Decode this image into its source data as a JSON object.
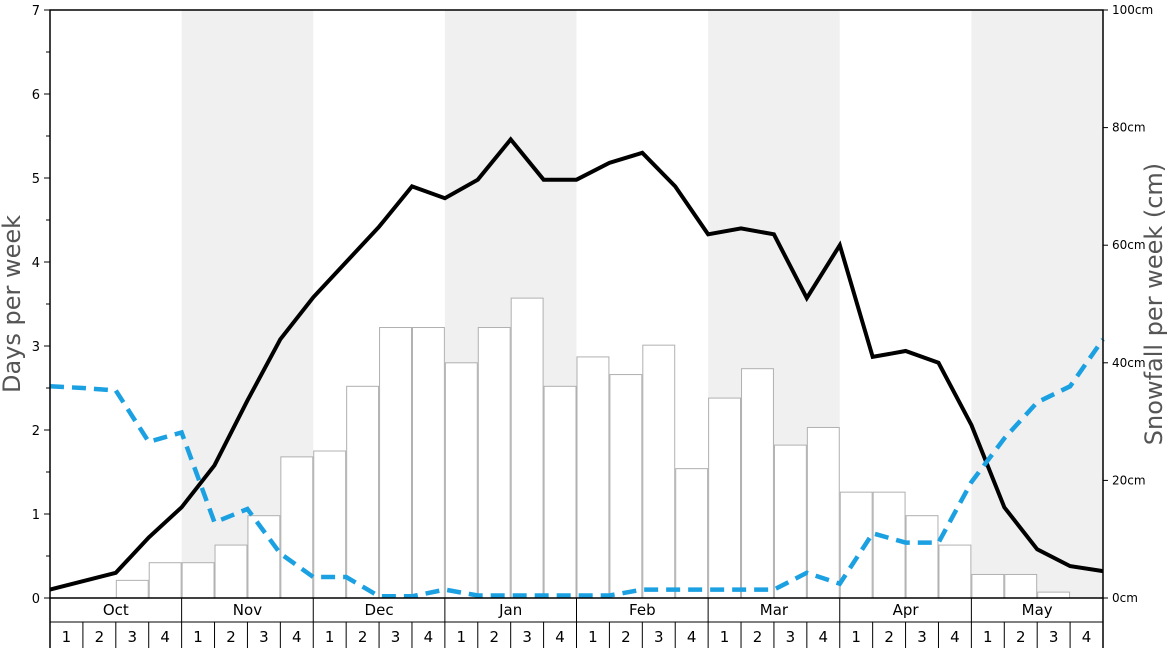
{
  "chart_data": {
    "type": "bar",
    "months": [
      "Oct",
      "Nov",
      "Dec",
      "Jan",
      "Feb",
      "Mar",
      "Apr",
      "May"
    ],
    "weeks": [
      "1",
      "2",
      "3",
      "4"
    ],
    "ylabel_left": "Days per week",
    "ylabel_right": "Snowfall per week (cm)",
    "ylim_left": [
      0,
      7
    ],
    "ylim_right": [
      0,
      100
    ],
    "left_ticks": [
      "0",
      "1",
      "2",
      "3",
      "4",
      "5",
      "6",
      "7"
    ],
    "right_ticks": [
      "0cm",
      "20cm",
      "40cm",
      "60cm",
      "80cm",
      "100cm"
    ],
    "series": [
      {
        "kind": "bar",
        "axis": "right",
        "values": [
          0,
          0,
          3,
          6,
          6,
          9,
          14,
          24,
          25,
          36,
          46,
          46,
          40,
          46,
          51,
          36,
          41,
          38,
          43,
          22,
          34,
          39,
          26,
          29,
          18,
          18,
          14,
          9,
          4,
          4,
          1,
          0
        ]
      },
      {
        "kind": "line",
        "axis": "left",
        "style": "solid",
        "color": "#000000",
        "values": [
          0.1,
          0.2,
          0.3,
          0.72,
          1.08,
          1.58,
          2.35,
          3.08,
          3.58,
          4.0,
          4.42,
          4.9,
          4.76,
          4.98,
          5.46,
          4.98,
          4.98,
          5.18,
          5.3,
          4.9,
          4.33,
          4.4,
          4.33,
          3.57,
          4.2,
          2.87,
          2.94,
          2.8,
          2.06,
          1.08,
          0.58,
          0.38,
          0.32
        ]
      },
      {
        "kind": "line",
        "axis": "left",
        "style": "dashed",
        "color": "#1ba1e2",
        "values": [
          2.52,
          2.5,
          2.47,
          1.86,
          1.97,
          0.9,
          1.06,
          0.53,
          0.25,
          0.25,
          0.02,
          0.02,
          0.1,
          0.03,
          0.03,
          0.03,
          0.03,
          0.03,
          0.1,
          0.1,
          0.1,
          0.1,
          0.1,
          0.3,
          0.17,
          0.77,
          0.66,
          0.66,
          1.38,
          1.9,
          2.33,
          2.52,
          3.08
        ]
      }
    ]
  }
}
